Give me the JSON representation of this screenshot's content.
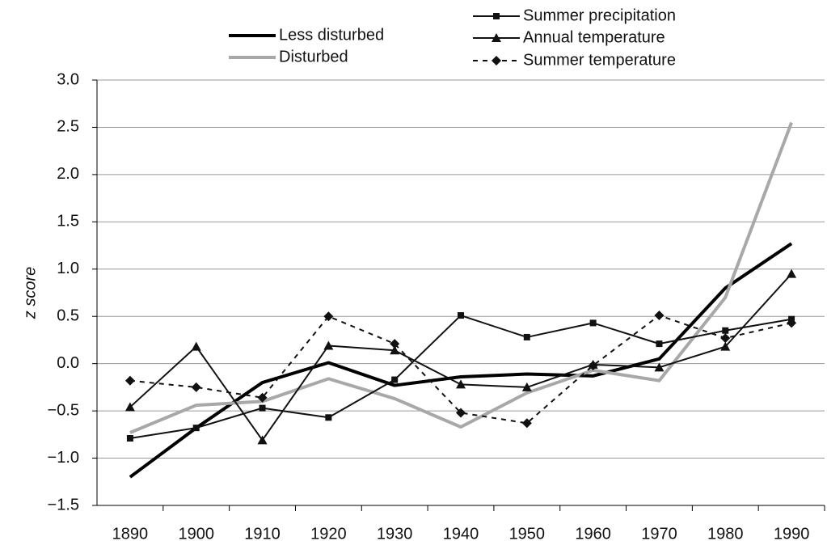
{
  "chart_data": {
    "type": "line",
    "y_label": "z score",
    "categories": [
      "1890",
      "1900",
      "1910",
      "1920",
      "1930",
      "1940",
      "1950",
      "1960",
      "1970",
      "1980",
      "1990"
    ],
    "ylim": [
      -1.5,
      3.0
    ],
    "yticks": [
      {
        "value": -1.5,
        "label": "−1.5"
      },
      {
        "value": -1.0,
        "label": "−1.0"
      },
      {
        "value": -0.5,
        "label": "−0.5"
      },
      {
        "value": 0.0,
        "label": "0.0"
      },
      0.5,
      {
        "value": 1.0,
        "label": "1.0"
      },
      1.5,
      {
        "value": 2.0,
        "label": "2.0"
      },
      2.5,
      {
        "value": 3.0,
        "label": "3.0"
      }
    ],
    "grid": true,
    "series": [
      {
        "name": "Less disturbed",
        "color": "#000000",
        "width": 4,
        "dash": "none",
        "marker": "none",
        "values": [
          -1.2,
          -0.68,
          -0.2,
          0.01,
          -0.23,
          -0.14,
          -0.11,
          -0.13,
          0.05,
          0.8,
          1.27
        ]
      },
      {
        "name": "Disturbed",
        "color": "#a8a8a8",
        "width": 4,
        "dash": "none",
        "marker": "none",
        "values": [
          -0.73,
          -0.44,
          -0.4,
          -0.16,
          -0.37,
          -0.67,
          -0.31,
          -0.07,
          -0.18,
          0.7,
          2.55
        ]
      },
      {
        "name": "Summer precipitation",
        "color": "#111111",
        "width": 2,
        "dash": "none",
        "marker": "square",
        "values": [
          -0.79,
          -0.68,
          -0.47,
          -0.57,
          -0.17,
          0.51,
          0.28,
          0.43,
          0.21,
          0.35,
          0.47
        ]
      },
      {
        "name": "Annual temperature",
        "color": "#111111",
        "width": 2,
        "dash": "none",
        "marker": "triangle",
        "values": [
          -0.46,
          0.18,
          -0.81,
          0.19,
          0.14,
          -0.22,
          -0.25,
          -0.01,
          -0.04,
          0.18,
          0.95
        ]
      },
      {
        "name": "Summer temperature",
        "color": "#111111",
        "width": 2,
        "dash": "6,6",
        "marker": "diamond",
        "values": [
          -0.18,
          -0.25,
          -0.36,
          0.5,
          0.21,
          -0.52,
          -0.63,
          -0.02,
          0.51,
          0.27,
          0.43
        ]
      }
    ]
  }
}
